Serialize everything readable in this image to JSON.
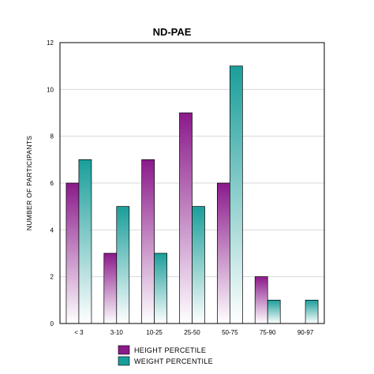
{
  "chart_data": {
    "type": "bar",
    "title": "ND-PAE",
    "xlabel": "",
    "ylabel": "NUMBER OF PARTICIPANTS",
    "categories": [
      "< 3",
      "3-10",
      "10-25",
      "25-50",
      "50-75",
      "75-90",
      "90-97"
    ],
    "series": [
      {
        "name": "HEIGHT PERCETILE",
        "values": [
          6,
          3,
          7,
          9,
          6,
          2,
          0
        ],
        "color": "#8b1a8b"
      },
      {
        "name": "WEIGHT PERCENTILE",
        "values": [
          7,
          5,
          3,
          5,
          11,
          1,
          1
        ],
        "color": "#1a9e9a"
      }
    ],
    "ylim": [
      0,
      12
    ],
    "yticks": [
      "0",
      "2",
      "4",
      "6",
      "8",
      "10",
      "12"
    ],
    "grid": true,
    "legend": "bottom-left"
  }
}
